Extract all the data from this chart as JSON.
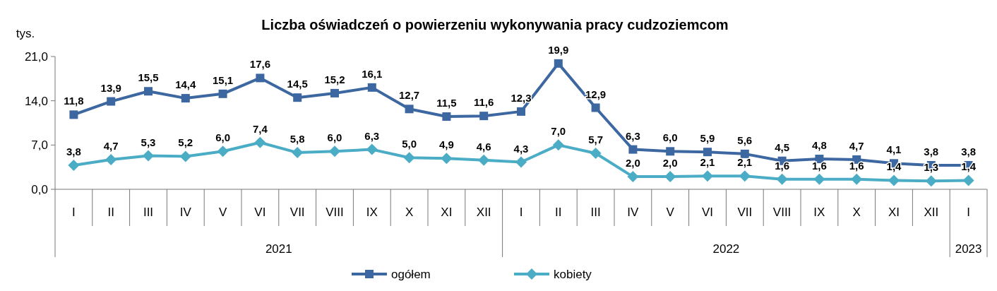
{
  "chart_data": {
    "type": "line",
    "title": "Liczba oświadczeń o powierzeniu wykonywania pracy cudzoziemcom",
    "ylabel": "tys.",
    "categories": [
      "I",
      "II",
      "III",
      "IV",
      "V",
      "VI",
      "VII",
      "VIII",
      "IX",
      "X",
      "XI",
      "XII",
      "I",
      "II",
      "III",
      "IV",
      "V",
      "VI",
      "VII",
      "VIII",
      "IX",
      "X",
      "XI",
      "XII",
      "I"
    ],
    "annotations": [
      "2021",
      "2022",
      "2023"
    ],
    "ylim": [
      0,
      21
    ],
    "yticks": [
      {
        "value": 0,
        "label": "0,0"
      },
      {
        "value": 7,
        "label": "7,0"
      },
      {
        "value": 14,
        "label": "14,0"
      },
      {
        "value": 21,
        "label": "21,0"
      }
    ],
    "series": [
      {
        "name": "ogółem",
        "color": "#3c67a0",
        "marker": "square",
        "values": [
          11.8,
          13.9,
          15.5,
          14.4,
          15.1,
          17.6,
          14.5,
          15.2,
          16.1,
          12.7,
          11.5,
          11.6,
          12.3,
          19.9,
          12.9,
          6.3,
          6.0,
          5.9,
          5.6,
          4.5,
          4.8,
          4.7,
          4.1,
          3.8,
          3.8
        ],
        "value_labels": [
          "11,8",
          "13,9",
          "15,5",
          "14,4",
          "15,1",
          "17,6",
          "14,5",
          "15,2",
          "16,1",
          "12,7",
          "11,5",
          "11,6",
          "12,3",
          "19,9",
          "12,9",
          "6,3",
          "6,0",
          "5,9",
          "5,6",
          "4,5",
          "4,8",
          "4,7",
          "4,1",
          "3,8",
          "3,8"
        ]
      },
      {
        "name": "kobiety",
        "color": "#4bacc6",
        "marker": "diamond",
        "values": [
          3.8,
          4.7,
          5.3,
          5.2,
          6.0,
          7.4,
          5.8,
          6.0,
          6.3,
          5.0,
          4.9,
          4.6,
          4.3,
          7.0,
          5.7,
          2.0,
          2.0,
          2.1,
          2.1,
          1.6,
          1.6,
          1.6,
          1.4,
          1.3,
          1.4
        ],
        "value_labels": [
          "3,8",
          "4,7",
          "5,3",
          "5,2",
          "6,0",
          "7,4",
          "5,8",
          "6,0",
          "6,3",
          "5,0",
          "4,9",
          "4,6",
          "4,3",
          "7,0",
          "5,7",
          "2,0",
          "2,0",
          "2,1",
          "2,1",
          "1,6",
          "1,6",
          "1,6",
          "1,4",
          "1,3",
          "1,4"
        ]
      }
    ],
    "legend": "bottom"
  }
}
